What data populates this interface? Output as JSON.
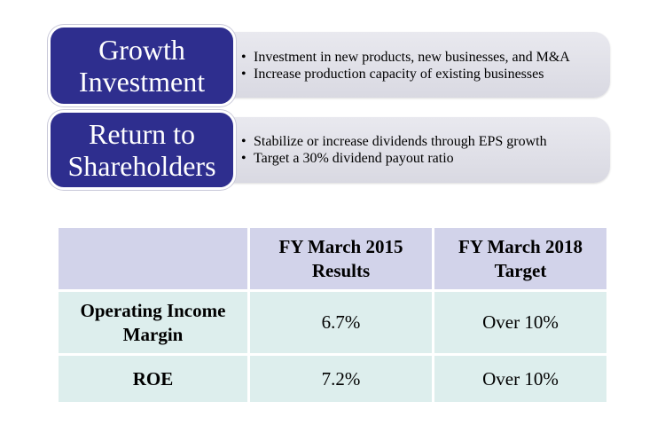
{
  "blocks": [
    {
      "title_lines": [
        "Growth",
        "Investment"
      ],
      "bullets": [
        "Investment in new products, new businesses, and M&A",
        "Increase production capacity of existing businesses"
      ]
    },
    {
      "title_lines": [
        "Return to",
        "Shareholders"
      ],
      "bullets": [
        "Stabilize or increase dividends through EPS growth",
        "Target a 30% dividend payout ratio"
      ]
    }
  ],
  "table": {
    "headers": [
      "",
      "FY March 2015 Results",
      "FY March 2018 Target"
    ],
    "rows": [
      [
        "Operating Income Margin",
        "6.7%",
        "Over 10%"
      ],
      [
        "ROE",
        "7.2%",
        "Over 10%"
      ]
    ]
  },
  "colors": {
    "label_bg": "#2e2e8e",
    "panel_bg": "#dcdce4",
    "table_header_bg": "#d2d3ea",
    "table_body_bg": "#ddeeed"
  }
}
